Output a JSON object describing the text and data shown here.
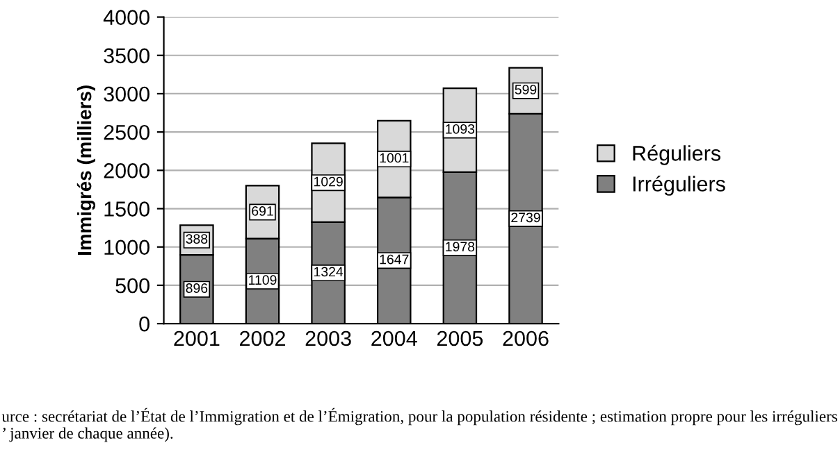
{
  "chart_data": {
    "type": "bar",
    "stacked": true,
    "ylabel": "Immigrés (milliers)",
    "categories": [
      "2001",
      "2002",
      "2003",
      "2004",
      "2005",
      "2006"
    ],
    "series": [
      {
        "name": "Irréguliers",
        "color": "#808080",
        "values": [
          896,
          1109,
          1324,
          1647,
          1978,
          2739
        ]
      },
      {
        "name": "Réguliers",
        "color": "#d9d9d9",
        "values": [
          388,
          691,
          1029,
          1001,
          1093,
          599
        ]
      }
    ],
    "data_labels": true,
    "ylim": [
      0,
      4000
    ],
    "yticks": [
      0,
      500,
      1000,
      1500,
      2000,
      2500,
      3000,
      3500,
      4000
    ],
    "grid": "y",
    "legend": "right",
    "annotations": [
      "urce : secrétariat de l’État de l’Immigration et de l’Émigration, pour la population résidente ; estimation propre pour les irréguliers\n’ janvier de chaque année)."
    ]
  }
}
